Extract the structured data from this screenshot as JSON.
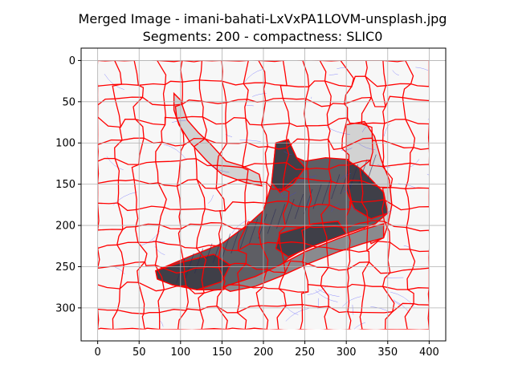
{
  "chart_data": {
    "type": "image",
    "title_lines": [
      "Merged Image - imani-bahati-LxVxPA1LOVM-unsplash.jpg",
      "Segments: 200 - compactness: SLIC0"
    ],
    "xlabel": "",
    "ylabel": "",
    "xlim": [
      -20,
      420
    ],
    "ylim": [
      340,
      -15
    ],
    "y_inverted": true,
    "x_ticks": [
      0,
      50,
      100,
      150,
      200,
      250,
      300,
      350,
      400
    ],
    "y_ticks": [
      0,
      50,
      100,
      150,
      200,
      250,
      300
    ],
    "image_extent": {
      "width": 400,
      "height": 326
    },
    "grid": true,
    "legend": "none",
    "colors": {
      "background": "#f7f7f7",
      "boundary": "#ff0000",
      "contour": "#3a3aff",
      "grid": "#b0b0b0",
      "shoe_dark": "#3f3f48",
      "shoe_mid": "#5e5e64",
      "shoe_light": "#8a8a8e",
      "lace_gray": "#d2d2d2"
    },
    "regions": [
      {
        "name": "lace-strip",
        "shade": "lace_gray",
        "polygon": [
          [
            92,
            40
          ],
          [
            100,
            48
          ],
          [
            108,
            72
          ],
          [
            122,
            88
          ],
          [
            135,
            100
          ],
          [
            155,
            122
          ],
          [
            175,
            128
          ],
          [
            195,
            138
          ],
          [
            198,
            152
          ],
          [
            178,
            148
          ],
          [
            150,
            138
          ],
          [
            132,
            122
          ],
          [
            112,
            100
          ],
          [
            98,
            78
          ],
          [
            92,
            60
          ]
        ]
      },
      {
        "name": "tongue-right",
        "shade": "lace_gray",
        "polygon": [
          [
            300,
            78
          ],
          [
            322,
            74
          ],
          [
            334,
            92
          ],
          [
            342,
            120
          ],
          [
            352,
            145
          ],
          [
            355,
            175
          ],
          [
            350,
            200
          ],
          [
            345,
            215
          ],
          [
            330,
            222
          ],
          [
            320,
            200
          ],
          [
            312,
            165
          ],
          [
            300,
            130
          ]
        ]
      },
      {
        "name": "shoe-upper",
        "shade": "shoe_mid",
        "polygon": [
          [
            70,
            255
          ],
          [
            110,
            238
          ],
          [
            150,
            222
          ],
          [
            180,
            200
          ],
          [
            200,
            182
          ],
          [
            210,
            150
          ],
          [
            215,
            100
          ],
          [
            230,
            96
          ],
          [
            240,
            118
          ],
          [
            250,
            122
          ],
          [
            275,
            118
          ],
          [
            302,
            120
          ],
          [
            318,
            140
          ],
          [
            345,
            160
          ],
          [
            350,
            185
          ],
          [
            335,
            198
          ],
          [
            300,
            210
          ],
          [
            260,
            222
          ],
          [
            230,
            240
          ],
          [
            210,
            258
          ],
          [
            180,
            270
          ],
          [
            150,
            278
          ],
          [
            120,
            278
          ],
          [
            90,
            272
          ],
          [
            72,
            265
          ]
        ]
      },
      {
        "name": "shoe-toe-dark",
        "shade": "shoe_dark",
        "polygon": [
          [
            70,
            255
          ],
          [
            100,
            245
          ],
          [
            140,
            235
          ],
          [
            160,
            248
          ],
          [
            150,
            268
          ],
          [
            120,
            278
          ],
          [
            90,
            272
          ],
          [
            72,
            265
          ]
        ]
      },
      {
        "name": "shoe-heel-dark",
        "shade": "shoe_dark",
        "polygon": [
          [
            300,
            120
          ],
          [
            318,
            132
          ],
          [
            345,
            160
          ],
          [
            350,
            185
          ],
          [
            330,
            192
          ],
          [
            310,
            180
          ],
          [
            300,
            158
          ]
        ]
      },
      {
        "name": "shoe-collar-dark",
        "shade": "shoe_dark",
        "polygon": [
          [
            215,
            100
          ],
          [
            230,
            96
          ],
          [
            240,
            118
          ],
          [
            250,
            130
          ],
          [
            236,
            150
          ],
          [
            220,
            160
          ],
          [
            210,
            148
          ]
        ]
      },
      {
        "name": "shoe-mid-dark",
        "shade": "shoe_dark",
        "polygon": [
          [
            220,
            210
          ],
          [
            260,
            198
          ],
          [
            290,
            195
          ],
          [
            300,
            210
          ],
          [
            260,
            225
          ],
          [
            230,
            238
          ],
          [
            215,
            228
          ]
        ]
      },
      {
        "name": "sole-strip",
        "shade": "shoe_light",
        "polygon": [
          [
            150,
            275
          ],
          [
            190,
            262
          ],
          [
            220,
            248
          ],
          [
            250,
            232
          ],
          [
            290,
            216
          ],
          [
            320,
            205
          ],
          [
            345,
            198
          ],
          [
            345,
            215
          ],
          [
            320,
            222
          ],
          [
            290,
            232
          ],
          [
            255,
            246
          ],
          [
            220,
            262
          ],
          [
            190,
            274
          ],
          [
            160,
            280
          ]
        ]
      }
    ]
  }
}
